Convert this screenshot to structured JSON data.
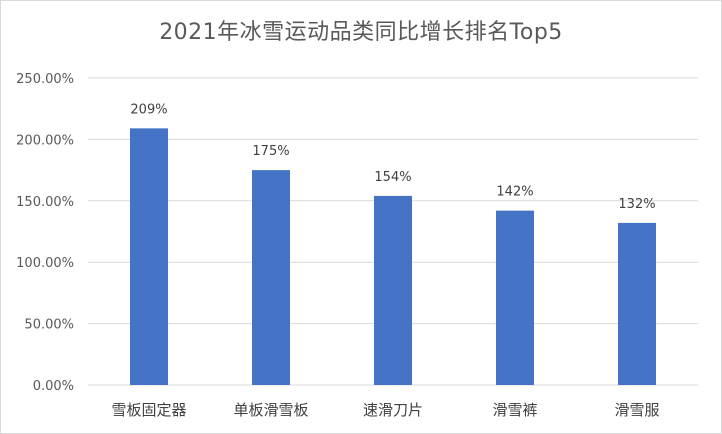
{
  "chart_data": {
    "type": "bar",
    "title": "2021年冰雪运动品类同比增长排名Top5",
    "categories": [
      "雪板固定器",
      "单板滑雪板",
      "速滑刀片",
      "滑雪裤",
      "滑雪服"
    ],
    "values": [
      209,
      175,
      154,
      142,
      132
    ],
    "data_labels": [
      "209%",
      "175%",
      "154%",
      "142%",
      "132%"
    ],
    "yticks": [
      0,
      50,
      100,
      150,
      200,
      250
    ],
    "ytick_labels": [
      "0.00%",
      "50.00%",
      "100.00%",
      "150.00%",
      "200.00%",
      "250.00%"
    ],
    "ylim": [
      0,
      250
    ],
    "xlabel": "",
    "ylabel": "",
    "grid": true,
    "legend": false,
    "colors": {
      "bar": "#4472c4",
      "grid": "#d9d9d9",
      "text": "#595959"
    }
  }
}
